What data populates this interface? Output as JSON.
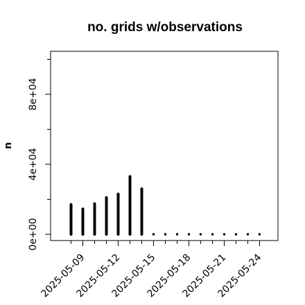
{
  "chart_data": {
    "type": "bar",
    "title": "no. grids w/observations",
    "xlabel": "",
    "ylabel": "n",
    "ylim": [
      0,
      100000
    ],
    "grid": false,
    "x": [
      "2025-05-08",
      "2025-05-09",
      "2025-05-10",
      "2025-05-11",
      "2025-05-12",
      "2025-05-13",
      "2025-05-14",
      "2025-05-15",
      "2025-05-16",
      "2025-05-17",
      "2025-05-18",
      "2025-05-19",
      "2025-05-20",
      "2025-05-21",
      "2025-05-22",
      "2025-05-23",
      "2025-05-24"
    ],
    "values": [
      17000,
      14500,
      17500,
      21000,
      23000,
      33000,
      26000,
      0,
      0,
      0,
      0,
      0,
      0,
      0,
      0,
      0,
      0
    ],
    "x_tick_labels": [
      "2025-05-09",
      "2025-05-12",
      "2025-05-15",
      "2025-05-18",
      "2025-05-21",
      "2025-05-24"
    ],
    "highlight_tick": "2025-05-15",
    "highlight_color": "#228B22",
    "y_tick_values": [
      0,
      40000,
      80000
    ],
    "y_tick_labels": [
      "0e+00",
      "4e+04",
      "8e+04"
    ]
  }
}
